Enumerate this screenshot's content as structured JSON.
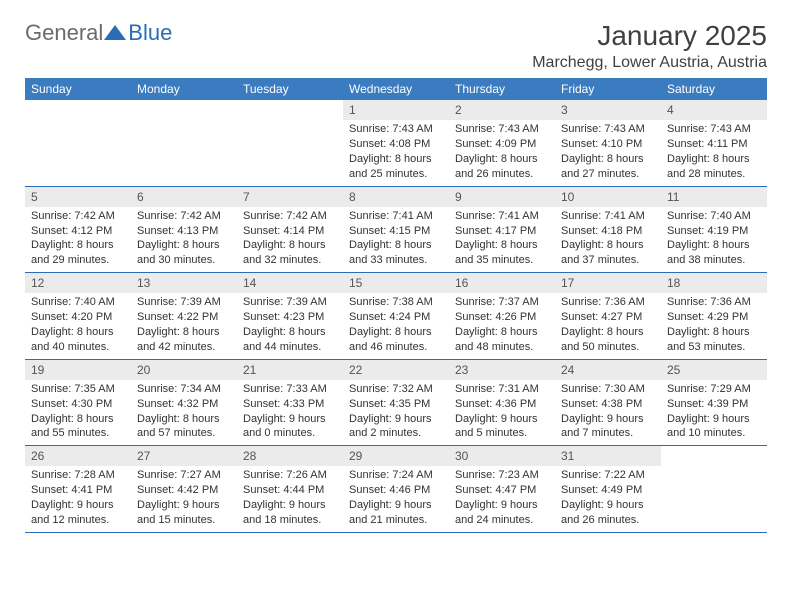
{
  "logo": {
    "text1": "General",
    "text2": "Blue"
  },
  "title": "January 2025",
  "location": "Marchegg, Lower Austria, Austria",
  "colors": {
    "header_bg": "#3b7bbf",
    "header_text": "#ffffff",
    "row_border": "#2a6db5",
    "daynum_bg": "#ebebeb",
    "logo_gray": "#6b6b6b",
    "logo_blue": "#2a6db5"
  },
  "day_headers": [
    "Sunday",
    "Monday",
    "Tuesday",
    "Wednesday",
    "Thursday",
    "Friday",
    "Saturday"
  ],
  "weeks": [
    [
      null,
      null,
      null,
      {
        "n": "1",
        "sr": "Sunrise: 7:43 AM",
        "ss": "Sunset: 4:08 PM",
        "d1": "Daylight: 8 hours",
        "d2": "and 25 minutes."
      },
      {
        "n": "2",
        "sr": "Sunrise: 7:43 AM",
        "ss": "Sunset: 4:09 PM",
        "d1": "Daylight: 8 hours",
        "d2": "and 26 minutes."
      },
      {
        "n": "3",
        "sr": "Sunrise: 7:43 AM",
        "ss": "Sunset: 4:10 PM",
        "d1": "Daylight: 8 hours",
        "d2": "and 27 minutes."
      },
      {
        "n": "4",
        "sr": "Sunrise: 7:43 AM",
        "ss": "Sunset: 4:11 PM",
        "d1": "Daylight: 8 hours",
        "d2": "and 28 minutes."
      }
    ],
    [
      {
        "n": "5",
        "sr": "Sunrise: 7:42 AM",
        "ss": "Sunset: 4:12 PM",
        "d1": "Daylight: 8 hours",
        "d2": "and 29 minutes."
      },
      {
        "n": "6",
        "sr": "Sunrise: 7:42 AM",
        "ss": "Sunset: 4:13 PM",
        "d1": "Daylight: 8 hours",
        "d2": "and 30 minutes."
      },
      {
        "n": "7",
        "sr": "Sunrise: 7:42 AM",
        "ss": "Sunset: 4:14 PM",
        "d1": "Daylight: 8 hours",
        "d2": "and 32 minutes."
      },
      {
        "n": "8",
        "sr": "Sunrise: 7:41 AM",
        "ss": "Sunset: 4:15 PM",
        "d1": "Daylight: 8 hours",
        "d2": "and 33 minutes."
      },
      {
        "n": "9",
        "sr": "Sunrise: 7:41 AM",
        "ss": "Sunset: 4:17 PM",
        "d1": "Daylight: 8 hours",
        "d2": "and 35 minutes."
      },
      {
        "n": "10",
        "sr": "Sunrise: 7:41 AM",
        "ss": "Sunset: 4:18 PM",
        "d1": "Daylight: 8 hours",
        "d2": "and 37 minutes."
      },
      {
        "n": "11",
        "sr": "Sunrise: 7:40 AM",
        "ss": "Sunset: 4:19 PM",
        "d1": "Daylight: 8 hours",
        "d2": "and 38 minutes."
      }
    ],
    [
      {
        "n": "12",
        "sr": "Sunrise: 7:40 AM",
        "ss": "Sunset: 4:20 PM",
        "d1": "Daylight: 8 hours",
        "d2": "and 40 minutes."
      },
      {
        "n": "13",
        "sr": "Sunrise: 7:39 AM",
        "ss": "Sunset: 4:22 PM",
        "d1": "Daylight: 8 hours",
        "d2": "and 42 minutes."
      },
      {
        "n": "14",
        "sr": "Sunrise: 7:39 AM",
        "ss": "Sunset: 4:23 PM",
        "d1": "Daylight: 8 hours",
        "d2": "and 44 minutes."
      },
      {
        "n": "15",
        "sr": "Sunrise: 7:38 AM",
        "ss": "Sunset: 4:24 PM",
        "d1": "Daylight: 8 hours",
        "d2": "and 46 minutes."
      },
      {
        "n": "16",
        "sr": "Sunrise: 7:37 AM",
        "ss": "Sunset: 4:26 PM",
        "d1": "Daylight: 8 hours",
        "d2": "and 48 minutes."
      },
      {
        "n": "17",
        "sr": "Sunrise: 7:36 AM",
        "ss": "Sunset: 4:27 PM",
        "d1": "Daylight: 8 hours",
        "d2": "and 50 minutes."
      },
      {
        "n": "18",
        "sr": "Sunrise: 7:36 AM",
        "ss": "Sunset: 4:29 PM",
        "d1": "Daylight: 8 hours",
        "d2": "and 53 minutes."
      }
    ],
    [
      {
        "n": "19",
        "sr": "Sunrise: 7:35 AM",
        "ss": "Sunset: 4:30 PM",
        "d1": "Daylight: 8 hours",
        "d2": "and 55 minutes."
      },
      {
        "n": "20",
        "sr": "Sunrise: 7:34 AM",
        "ss": "Sunset: 4:32 PM",
        "d1": "Daylight: 8 hours",
        "d2": "and 57 minutes."
      },
      {
        "n": "21",
        "sr": "Sunrise: 7:33 AM",
        "ss": "Sunset: 4:33 PM",
        "d1": "Daylight: 9 hours",
        "d2": "and 0 minutes."
      },
      {
        "n": "22",
        "sr": "Sunrise: 7:32 AM",
        "ss": "Sunset: 4:35 PM",
        "d1": "Daylight: 9 hours",
        "d2": "and 2 minutes."
      },
      {
        "n": "23",
        "sr": "Sunrise: 7:31 AM",
        "ss": "Sunset: 4:36 PM",
        "d1": "Daylight: 9 hours",
        "d2": "and 5 minutes."
      },
      {
        "n": "24",
        "sr": "Sunrise: 7:30 AM",
        "ss": "Sunset: 4:38 PM",
        "d1": "Daylight: 9 hours",
        "d2": "and 7 minutes."
      },
      {
        "n": "25",
        "sr": "Sunrise: 7:29 AM",
        "ss": "Sunset: 4:39 PM",
        "d1": "Daylight: 9 hours",
        "d2": "and 10 minutes."
      }
    ],
    [
      {
        "n": "26",
        "sr": "Sunrise: 7:28 AM",
        "ss": "Sunset: 4:41 PM",
        "d1": "Daylight: 9 hours",
        "d2": "and 12 minutes."
      },
      {
        "n": "27",
        "sr": "Sunrise: 7:27 AM",
        "ss": "Sunset: 4:42 PM",
        "d1": "Daylight: 9 hours",
        "d2": "and 15 minutes."
      },
      {
        "n": "28",
        "sr": "Sunrise: 7:26 AM",
        "ss": "Sunset: 4:44 PM",
        "d1": "Daylight: 9 hours",
        "d2": "and 18 minutes."
      },
      {
        "n": "29",
        "sr": "Sunrise: 7:24 AM",
        "ss": "Sunset: 4:46 PM",
        "d1": "Daylight: 9 hours",
        "d2": "and 21 minutes."
      },
      {
        "n": "30",
        "sr": "Sunrise: 7:23 AM",
        "ss": "Sunset: 4:47 PM",
        "d1": "Daylight: 9 hours",
        "d2": "and 24 minutes."
      },
      {
        "n": "31",
        "sr": "Sunrise: 7:22 AM",
        "ss": "Sunset: 4:49 PM",
        "d1": "Daylight: 9 hours",
        "d2": "and 26 minutes."
      },
      null
    ]
  ]
}
